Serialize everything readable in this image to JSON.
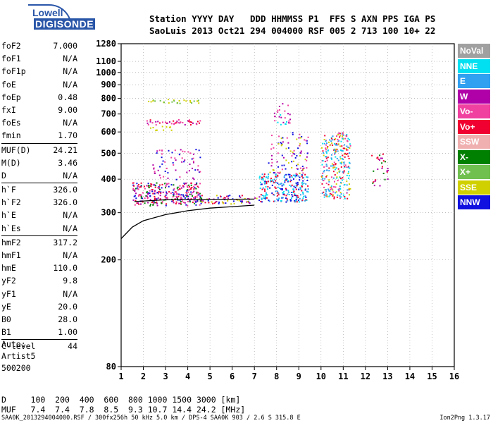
{
  "logo": {
    "line1": "Lowell",
    "line2": "DIGISONDE"
  },
  "header": {
    "line1": "Station YYYY DAY   DDD HHMMSS P1  FFS S AXN PPS IGA PS",
    "line2": "SaoLuis 2013 Oct21 294 004000 RSF 005 2 713 100 10+ 22"
  },
  "params": [
    {
      "name": "foF2",
      "value": "7.000"
    },
    {
      "name": "foF1",
      "value": "N/A"
    },
    {
      "name": "foF1p",
      "value": "N/A"
    },
    {
      "name": "foE",
      "value": "N/A"
    },
    {
      "name": "foEp",
      "value": "0.48"
    },
    {
      "name": "fxI",
      "value": "9.00"
    },
    {
      "name": "foEs",
      "value": "N/A"
    },
    {
      "name": "fmin",
      "value": "1.70"
    },
    {
      "name": "MUF(D)",
      "value": "24.21",
      "divider": true
    },
    {
      "name": "M(D)",
      "value": "3.46"
    },
    {
      "name": "D",
      "value": "N/A"
    },
    {
      "name": "h`F",
      "value": "326.0",
      "divider": true
    },
    {
      "name": "h`F2",
      "value": "326.0"
    },
    {
      "name": "h`E",
      "value": "N/A"
    },
    {
      "name": "h`Es",
      "value": "N/A"
    },
    {
      "name": "hmF2",
      "value": "317.2",
      "divider": true
    },
    {
      "name": "hmF1",
      "value": "N/A"
    },
    {
      "name": "hmE",
      "value": "110.0"
    },
    {
      "name": "yF2",
      "value": "9.8"
    },
    {
      "name": "yF1",
      "value": "N/A"
    },
    {
      "name": "yE",
      "value": "20.0"
    },
    {
      "name": "B0",
      "value": "28.0"
    },
    {
      "name": "B1",
      "value": "1.00"
    },
    {
      "name": "C-level",
      "value": "44",
      "divider": true
    }
  ],
  "auto": {
    "line1": "Auto:",
    "line2": "Artist5",
    "line3": "500200"
  },
  "dmuf": {
    "d_line": "D     100  200  400  600  800 1000 1500 3000 [km]",
    "muf_line": "MUF   7.4  7.4  7.8  8.5  9.3 10.7 14.4 24.2 [MHz]"
  },
  "footer": "SAA0K_2013294004000.RSF / 300fx256h 50 kHz 5.0 km / DPS-4 SAA0K 903 / 2.6 S 315.8 E",
  "version": "Ion2Png 1.3.17",
  "legend": [
    {
      "label": "NoVal",
      "color": "#a0a0a0"
    },
    {
      "label": "NNE",
      "color": "#00e0f0"
    },
    {
      "label": "E",
      "color": "#30a0f0"
    },
    {
      "label": "W",
      "color": "#b000a8"
    },
    {
      "label": "Vo-",
      "color": "#f040a0"
    },
    {
      "label": "Vo+",
      "color": "#f00030"
    },
    {
      "label": "SSW",
      "color": "#f0b0b0"
    },
    {
      "label": "X-",
      "color": "#008000"
    },
    {
      "label": "X+",
      "color": "#70c050"
    },
    {
      "label": "SSE",
      "color": "#d0d000"
    },
    {
      "label": "NNW",
      "color": "#1010e0"
    }
  ],
  "chart_data": {
    "type": "scatter",
    "title": "",
    "xlabel": "",
    "ylabel": "",
    "xlim": [
      1,
      16
    ],
    "ylim": [
      80,
      1280
    ],
    "x_ticks": [
      1,
      2,
      3,
      4,
      5,
      6,
      7,
      8,
      9,
      10,
      11,
      12,
      13,
      14,
      15,
      16
    ],
    "y_ticks": [
      80,
      200,
      300,
      400,
      500,
      600,
      700,
      800,
      900,
      1000,
      1100,
      1280
    ],
    "y_scale": "log",
    "grid": "dotted",
    "legend_position": "right",
    "echo_regions": [
      {
        "f": [
          1.5,
          4.6
        ],
        "h": [
          320,
          390
        ],
        "colors": [
          "#f00030",
          "#b000a8",
          "#f040a0",
          "#008000",
          "#1010e0"
        ],
        "density": 0.85
      },
      {
        "f": [
          2.0,
          4.6
        ],
        "h": [
          640,
          670
        ],
        "colors": [
          "#f00030",
          "#f040a0",
          "#b000a8"
        ],
        "density": 0.6
      },
      {
        "f": [
          2.2,
          4.6
        ],
        "h": [
          770,
          800
        ],
        "colors": [
          "#d0d000",
          "#70c050"
        ],
        "density": 0.55
      },
      {
        "f": [
          2.2,
          3.4
        ],
        "h": [
          610,
          640
        ],
        "colors": [
          "#d0d000"
        ],
        "density": 0.35
      },
      {
        "f": [
          2.4,
          4.6
        ],
        "h": [
          400,
          520
        ],
        "colors": [
          "#b000a8",
          "#1010e0",
          "#f040a0"
        ],
        "density": 0.2
      },
      {
        "f": [
          4.6,
          7.2
        ],
        "h": [
          325,
          350
        ],
        "colors": [
          "#f00030",
          "#d0d000",
          "#1010e0",
          "#b000a8"
        ],
        "density": 0.55
      },
      {
        "f": [
          7.2,
          9.4
        ],
        "h": [
          330,
          420
        ],
        "colors": [
          "#30a0f0",
          "#00e0f0",
          "#1010e0",
          "#f00030"
        ],
        "density": 0.8
      },
      {
        "f": [
          7.6,
          9.4
        ],
        "h": [
          420,
          600
        ],
        "colors": [
          "#d0d000",
          "#b000a8",
          "#f040a0",
          "#1010e0"
        ],
        "density": 0.25
      },
      {
        "f": [
          7.8,
          8.6
        ],
        "h": [
          640,
          780
        ],
        "colors": [
          "#b000a8",
          "#f040a0",
          "#00e0f0"
        ],
        "density": 0.3
      },
      {
        "f": [
          10.0,
          11.3
        ],
        "h": [
          340,
          600
        ],
        "colors": [
          "#f00030",
          "#f040a0",
          "#00e0f0",
          "#d0d000",
          "#30a0f0"
        ],
        "density": 0.65
      },
      {
        "f": [
          12.2,
          13.0
        ],
        "h": [
          380,
          520
        ],
        "colors": [
          "#f00030",
          "#008000",
          "#b000a8"
        ],
        "density": 0.2
      }
    ],
    "trace_curve": {
      "f": [
        1.0,
        1.5,
        2.0,
        3.0,
        4.0,
        5.0,
        6.0,
        7.0
      ],
      "h": [
        240,
        265,
        280,
        295,
        305,
        312,
        316,
        320
      ]
    },
    "trace_curve2": {
      "f": [
        1.6,
        3.0,
        5.0,
        7.0
      ],
      "h": [
        330,
        335,
        336,
        337
      ]
    }
  }
}
